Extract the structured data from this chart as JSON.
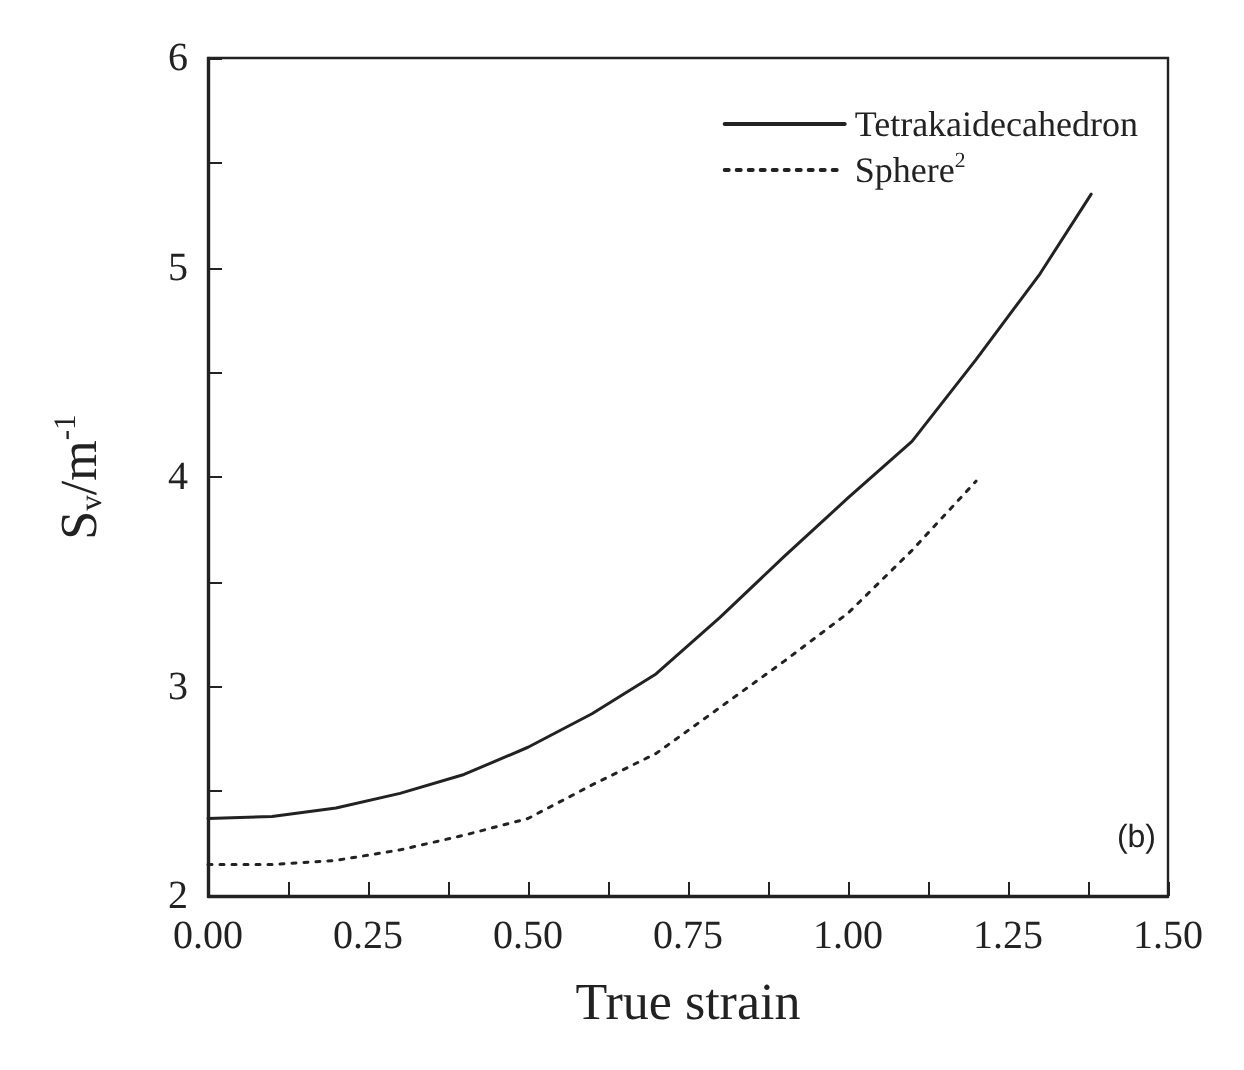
{
  "chart_data": {
    "type": "line",
    "xlabel": "True strain",
    "ylabel": "S$_{v}$/m$^{-1}$",
    "xlim": [
      0,
      1.5
    ],
    "ylim": [
      2,
      6
    ],
    "xticks": [
      {
        "value": 0,
        "label": "0.00"
      },
      {
        "value": 0.125,
        "label": null
      },
      {
        "value": 0.25,
        "label": "0.25"
      },
      {
        "value": 0.375,
        "label": null
      },
      {
        "value": 0.5,
        "label": "0.50"
      },
      {
        "value": 0.625,
        "label": null
      },
      {
        "value": 0.75,
        "label": "0.75"
      },
      {
        "value": 0.875,
        "label": null
      },
      {
        "value": 1,
        "label": "1.00"
      },
      {
        "value": 1.125,
        "label": null
      },
      {
        "value": 1.25,
        "label": "1.25"
      },
      {
        "value": 1.375,
        "label": null
      },
      {
        "value": 1.5,
        "label": "1.50"
      }
    ],
    "yticks": [
      2,
      {
        "value": 2.5,
        "label": null
      },
      3,
      {
        "value": 3.5,
        "label": null
      },
      4,
      {
        "value": 4.5,
        "label": null
      },
      5,
      {
        "value": 5.5,
        "label": null
      },
      6
    ],
    "grid": false,
    "legend": "top right",
    "marker": "none",
    "annotations": [
      "(b)"
    ],
    "series": [
      {
        "name": "Tetrakaidecahedron",
        "color": "#222222",
        "line_style": "solid",
        "x": [
          0,
          0.1,
          0.2,
          0.3,
          0.4,
          0.5,
          0.6,
          0.7,
          0.8,
          0.9,
          1.0,
          1.1,
          1.2,
          1.3,
          1.38
        ],
        "values": [
          2.37,
          2.38,
          2.42,
          2.49,
          2.58,
          2.71,
          2.87,
          3.06,
          3.33,
          3.62,
          3.9,
          4.17,
          4.56,
          4.97,
          5.35
        ]
      },
      {
        "name": "Sphere$^{2}$",
        "color": "#222222",
        "line_style": "dotted",
        "x": [
          0,
          0.1,
          0.2,
          0.3,
          0.4,
          0.5,
          0.6,
          0.7,
          0.8,
          0.9,
          1.0,
          1.1,
          1.2
        ],
        "values": [
          2.15,
          2.15,
          2.17,
          2.22,
          2.29,
          2.37,
          2.53,
          2.68,
          2.9,
          3.12,
          3.35,
          3.65,
          3.98
        ]
      }
    ]
  }
}
